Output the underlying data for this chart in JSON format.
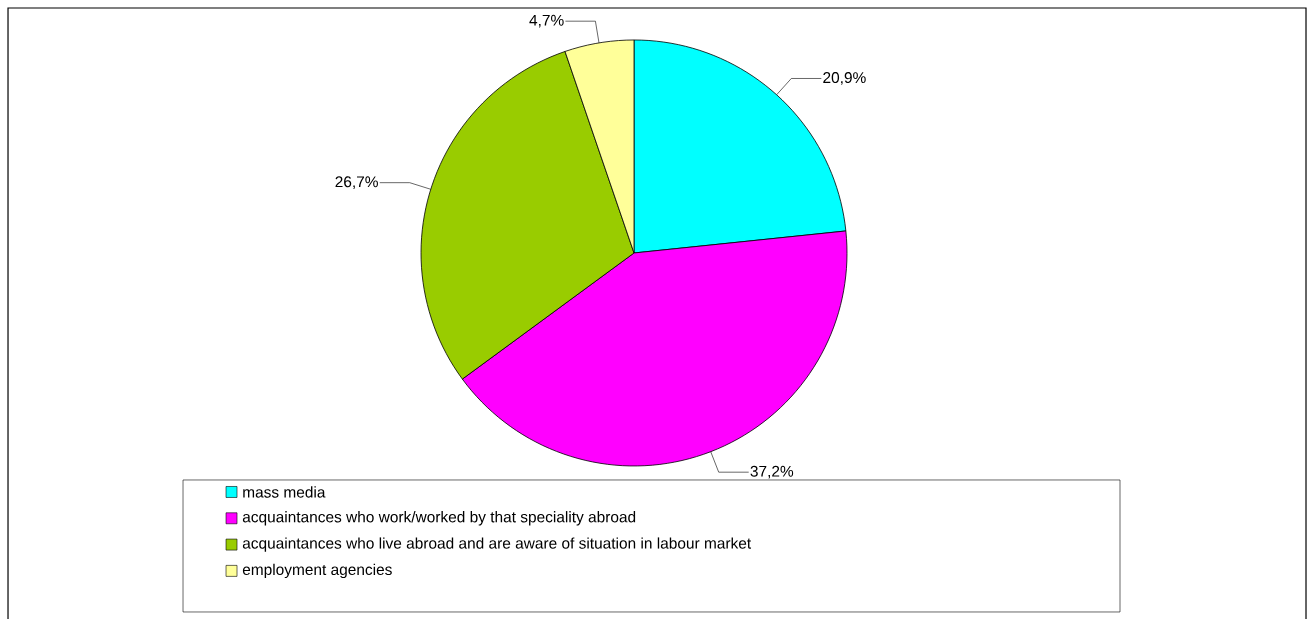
{
  "chart_data": {
    "type": "pie",
    "categories": [
      "mass media",
      "acquaintances who work/worked by that speciality abroad",
      "acquaintances who live abroad and are aware of situation in labour market",
      "employment agencies"
    ],
    "values": [
      20.9,
      37.2,
      26.7,
      4.7
    ],
    "value_labels": [
      "20,9%",
      "37,2%",
      "26,7%",
      "4,7%"
    ],
    "colors": [
      "#00ffff",
      "#ff00ff",
      "#99cc00",
      "#ffff99"
    ],
    "legend": "bottom"
  }
}
